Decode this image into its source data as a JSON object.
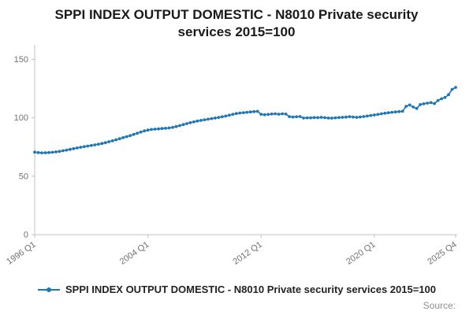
{
  "title": "SPPI INDEX OUTPUT DOMESTIC - N8010 Private security services 2015=100",
  "legend_label": "SPPI INDEX OUTPUT DOMESTIC - N8010 Private security services 2015=100",
  "source_label": "Source:",
  "colors": {
    "line": "#1f77b4",
    "axis": "#c0c0c0",
    "tick_text": "#707070",
    "title_text": "#1a1a1a"
  },
  "chart_data": {
    "type": "line",
    "title": "SPPI INDEX OUTPUT DOMESTIC - N8010 Private security services 2015=100",
    "xlabel": "",
    "ylabel": "",
    "x_unit": "quarter",
    "x_tick_labels": [
      "1996 Q1",
      "2004 Q1",
      "2012 Q1",
      "2020 Q1",
      "2025 Q4"
    ],
    "x_tick_positions": [
      0,
      32,
      64,
      96,
      119
    ],
    "y_ticks": [
      0,
      50,
      100,
      150
    ],
    "ylim": [
      0,
      157
    ],
    "grid": false,
    "legend_position": "bottom",
    "marker": "circle",
    "series_name": "SPPI INDEX OUTPUT DOMESTIC - N8010 Private security services 2015=100",
    "values": [
      70.6,
      70.2,
      70.0,
      70.1,
      70.3,
      70.5,
      70.8,
      71.2,
      71.8,
      72.4,
      73.0,
      73.6,
      74.2,
      74.8,
      75.3,
      75.8,
      76.3,
      76.8,
      77.4,
      78.0,
      78.7,
      79.5,
      80.3,
      81.2,
      82.1,
      83.0,
      83.9,
      84.8,
      85.8,
      86.8,
      87.8,
      88.8,
      89.5,
      90.0,
      90.3,
      90.5,
      90.8,
      91.0,
      91.3,
      91.8,
      92.5,
      93.3,
      94.2,
      95.0,
      95.8,
      96.5,
      97.2,
      97.8,
      98.3,
      98.8,
      99.3,
      99.8,
      100.3,
      100.9,
      101.5,
      102.2,
      103.0,
      103.6,
      104.1,
      104.4,
      104.7,
      105.0,
      105.3,
      105.5,
      103.0,
      102.6,
      102.9,
      103.2,
      103.4,
      103.1,
      103.4,
      103.2,
      101.0,
      100.7,
      100.9,
      101.1,
      99.8,
      100.0,
      100.0,
      100.2,
      100.1,
      100.4,
      100.1,
      99.8,
      99.7,
      100.0,
      100.2,
      100.4,
      100.6,
      101.0,
      100.7,
      100.4,
      100.7,
      101.1,
      101.5,
      102.0,
      102.4,
      102.9,
      103.4,
      103.9,
      104.3,
      104.7,
      105.0,
      105.3,
      105.6,
      109.8,
      111.0,
      109.2,
      108.0,
      111.3,
      112.0,
      112.5,
      113.0,
      112.2,
      114.8,
      116.3,
      117.4,
      119.8,
      124.3,
      126.0
    ]
  }
}
